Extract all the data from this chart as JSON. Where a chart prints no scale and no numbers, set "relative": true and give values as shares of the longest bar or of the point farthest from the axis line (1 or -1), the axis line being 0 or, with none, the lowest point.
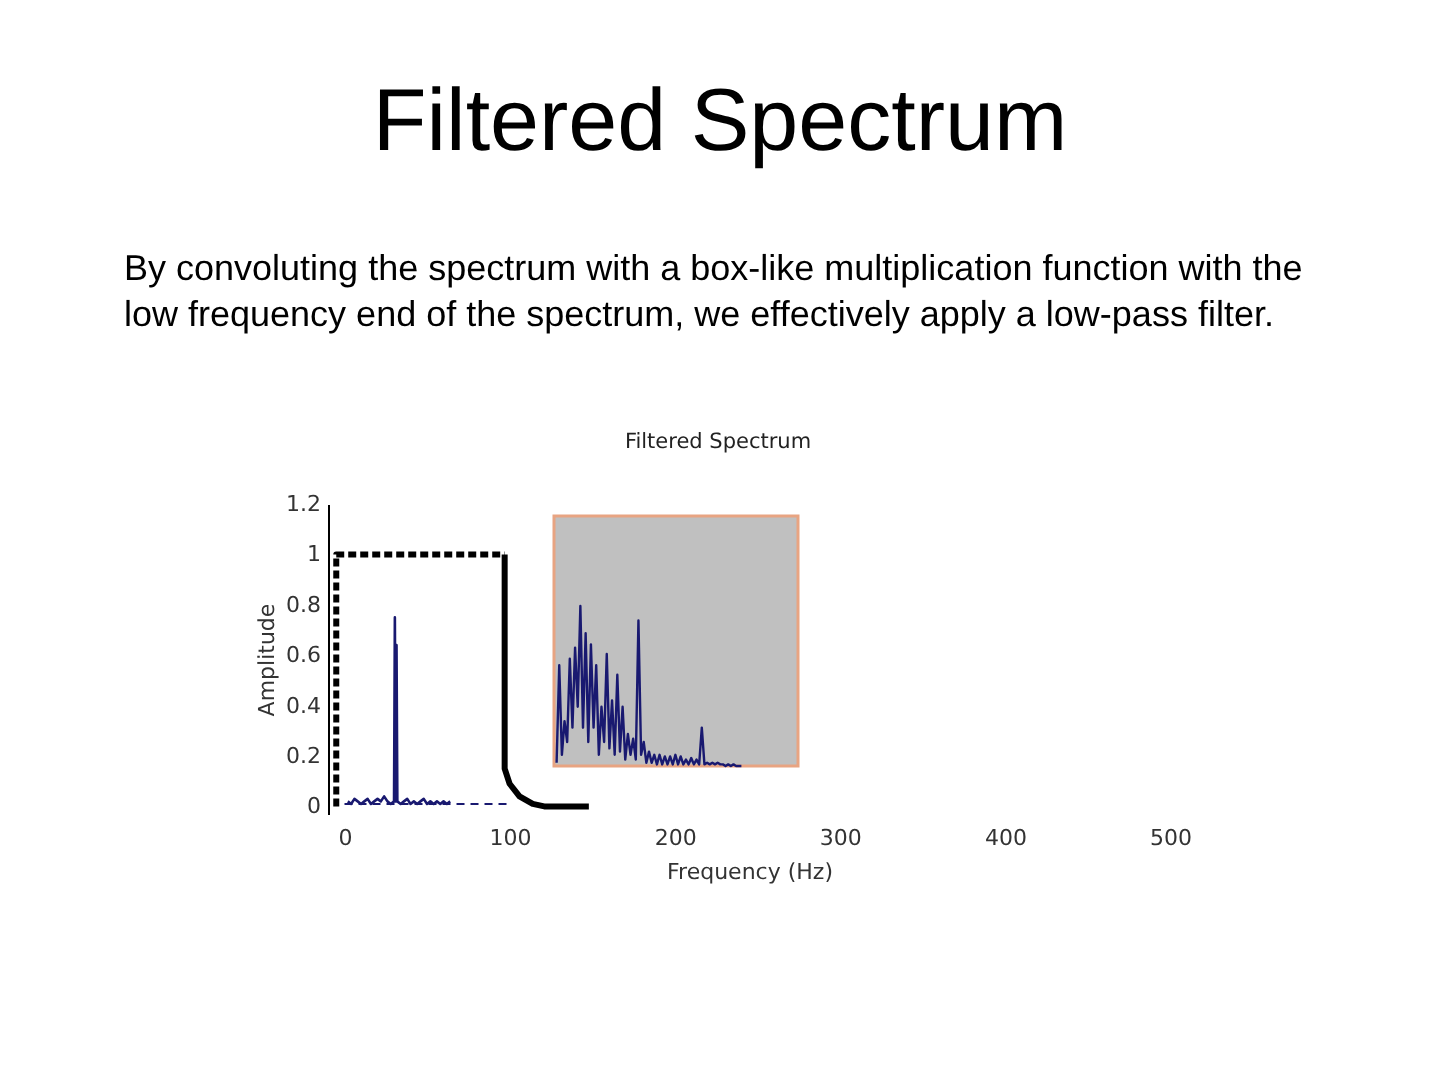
{
  "chart_data": [
    {
      "type": "line",
      "title": "Filtered Spectrum",
      "subtitle": "By convoluting the spectrum with a box-like multiplication function with the low frequency end of the spectrum, we effectively apply a low-pass filter.",
      "annotations": [
        "Filtered Spectrum"
      ],
      "xlabel": "Frequency (Hz)",
      "ylabel": "Amplitude",
      "xlim": [
        -10,
        500
      ],
      "xticks": [
        0,
        100,
        200,
        300,
        400,
        500
      ],
      "ylim": [
        -0.03,
        1.2
      ],
      "yticks": [
        0,
        0.2,
        0.4,
        0.6,
        0.8,
        1,
        1.2
      ],
      "series": [
        {
          "color": "#000000",
          "line_style": "dotted",
          "x": [
            -5,
            -5,
            97
          ],
          "values": [
            0,
            1,
            1
          ]
        },
        {
          "color": "#000000",
          "line_style": "solid",
          "x": [
            97,
            97,
            100,
            106,
            114,
            121,
            148
          ],
          "values": [
            1,
            0.15,
            0.09,
            0.04,
            0.01,
            0,
            0
          ]
        },
        {
          "color": "#191970",
          "line_style": "solid",
          "x": [
            2,
            4,
            6,
            8,
            10,
            12,
            14,
            16,
            18,
            20,
            22,
            24,
            26,
            28,
            30,
            30.5,
            31,
            31.5,
            32,
            34,
            36,
            38,
            40,
            42,
            44,
            46,
            48,
            50,
            52,
            54,
            56,
            58,
            60,
            62,
            64
          ],
          "values": [
            0.02,
            0.01,
            0.03,
            0.02,
            0.01,
            0.02,
            0.03,
            0.01,
            0.02,
            0.03,
            0.02,
            0.04,
            0.02,
            0.01,
            0.02,
            0.75,
            0.02,
            0.64,
            0.02,
            0.01,
            0.02,
            0.03,
            0.01,
            0.02,
            0.01,
            0.02,
            0.03,
            0.01,
            0.02,
            0.01,
            0.02,
            0.01,
            0.02,
            0.01,
            0.02
          ]
        },
        {
          "color": "#191970",
          "line_style": "dashed",
          "x": [
            0,
            100
          ],
          "values": [
            0.01,
            0.01
          ]
        }
      ]
    },
    {
      "type": "line",
      "relative": true,
      "categories": [
        null,
        null,
        null,
        null,
        null,
        null,
        null,
        null,
        null,
        null,
        null,
        null,
        null,
        null,
        null,
        null,
        null,
        null,
        null,
        null,
        null,
        null,
        null,
        null,
        null,
        null,
        null,
        null,
        null,
        null,
        null,
        null,
        null,
        null,
        null,
        null,
        null,
        null,
        null,
        null,
        null,
        null,
        null,
        null,
        null,
        null,
        null,
        null,
        null,
        null,
        null,
        null,
        null,
        null,
        null,
        null,
        null,
        null,
        null,
        null,
        null,
        null,
        null,
        null,
        null,
        null,
        null,
        null,
        null,
        null,
        null
      ],
      "series": [
        {
          "color": "#191970",
          "values": [
            0.02,
            0.63,
            0.07,
            0.28,
            0.15,
            0.67,
            0.24,
            0.74,
            0.37,
            1,
            0.24,
            0.83,
            0.15,
            0.76,
            0.24,
            0.63,
            0.07,
            0.37,
            0.15,
            0.7,
            0.11,
            0.41,
            0.07,
            0.57,
            0.09,
            0.37,
            0.04,
            0.2,
            0.07,
            0.17,
            0.04,
            0.91,
            0.07,
            0.15,
            0.02,
            0.09,
            0.02,
            0.07,
            0.01,
            0.07,
            0.01,
            0.06,
            0.01,
            0.06,
            0.01,
            0.07,
            0.01,
            0.06,
            0.01,
            0.04,
            0.01,
            0.05,
            0.01,
            0.04,
            0.01,
            0.24,
            0.01,
            0.02,
            0.01,
            0.02,
            0.01,
            0.02,
            0.01,
            0.01,
            0,
            0.01,
            0,
            0.01,
            0,
            0,
            0
          ]
        }
      ]
    }
  ]
}
